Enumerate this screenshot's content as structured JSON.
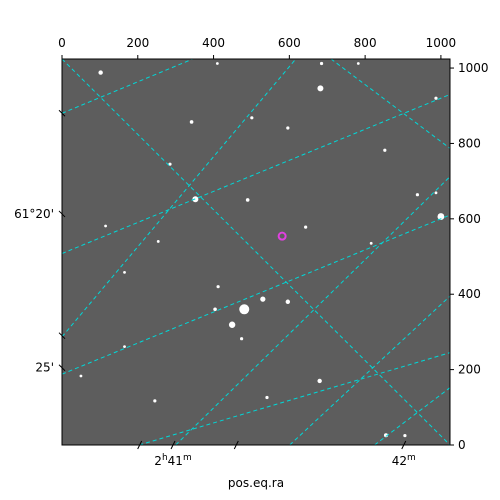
{
  "chart_data": {
    "type": "scatter",
    "title": "",
    "xlabel": "pos.eq.ra",
    "ylabel": "",
    "xlim": [
      0,
      1024
    ],
    "ylim": [
      0,
      1024
    ],
    "grid": true,
    "grid_color": "#00d8d8",
    "image_background": "#5d5d5d",
    "source_marker_color": "#e040e0",
    "pixel_axes": {
      "top_ticks": [
        0,
        200,
        400,
        600,
        800,
        1000
      ],
      "right_ticks": [
        0,
        200,
        400,
        600,
        800,
        1000
      ]
    },
    "world_axes": {
      "bottom_labels": [
        {
          "x": 293,
          "hours": "2",
          "h_unit": "h",
          "minutes": "41",
          "m_unit": "m"
        },
        {
          "x": 902,
          "hours": "",
          "h_unit": "",
          "minutes": "42",
          "m_unit": "m"
        }
      ],
      "left_labels": [
        {
          "y": 613,
          "text": "61°20'"
        },
        {
          "y": 205,
          "text": "25'"
        }
      ]
    },
    "grid_lines": [
      {
        "x1": 0,
        "y1": 1024,
        "x2": 1024,
        "y2": 0
      },
      {
        "x1": 0,
        "y1": 880,
        "x2": 345,
        "y2": 1024
      },
      {
        "x1": 0,
        "y1": 508,
        "x2": 1024,
        "y2": 930
      },
      {
        "x1": 0,
        "y1": 188,
        "x2": 1024,
        "y2": 610
      },
      {
        "x1": 204,
        "y1": 0,
        "x2": 1024,
        "y2": 245
      },
      {
        "x1": 0,
        "y1": 287,
        "x2": 617,
        "y2": 1024
      },
      {
        "x1": 0,
        "y1": 0,
        "x2": 415,
        "y2": 0
      },
      {
        "x1": 300,
        "y1": 0,
        "x2": 1024,
        "y2": 712
      },
      {
        "x1": 601,
        "y1": 0,
        "x2": 1024,
        "y2": 395
      },
      {
        "x1": 825,
        "y1": 0,
        "x2": 1024,
        "y2": 152
      },
      {
        "x1": 710,
        "y1": 1024,
        "x2": 1024,
        "y2": 787
      }
    ],
    "stars": [
      {
        "x": 102,
        "y": 988,
        "r": 2.2
      },
      {
        "x": 685,
        "y": 1012,
        "r": 1.6
      },
      {
        "x": 682,
        "y": 946,
        "r": 3.0
      },
      {
        "x": 987,
        "y": 920,
        "r": 1.6
      },
      {
        "x": 342,
        "y": 857,
        "r": 1.8
      },
      {
        "x": 501,
        "y": 868,
        "r": 1.6
      },
      {
        "x": 596,
        "y": 841,
        "r": 1.6
      },
      {
        "x": 852,
        "y": 782,
        "r": 1.6
      },
      {
        "x": 285,
        "y": 745,
        "r": 1.6
      },
      {
        "x": 938,
        "y": 664,
        "r": 1.6
      },
      {
        "x": 987,
        "y": 669,
        "r": 1.4
      },
      {
        "x": 490,
        "y": 650,
        "r": 1.8
      },
      {
        "x": 352,
        "y": 652,
        "r": 3.0
      },
      {
        "x": 1000,
        "y": 606,
        "r": 3.4
      },
      {
        "x": 115,
        "y": 581,
        "r": 1.4
      },
      {
        "x": 643,
        "y": 578,
        "r": 1.6
      },
      {
        "x": 254,
        "y": 540,
        "r": 1.4
      },
      {
        "x": 816,
        "y": 535,
        "r": 1.4
      },
      {
        "x": 165,
        "y": 458,
        "r": 1.4
      },
      {
        "x": 412,
        "y": 420,
        "r": 1.6
      },
      {
        "x": 530,
        "y": 387,
        "r": 2.6
      },
      {
        "x": 596,
        "y": 380,
        "r": 2.2
      },
      {
        "x": 481,
        "y": 360,
        "r": 5.0
      },
      {
        "x": 404,
        "y": 360,
        "r": 1.8
      },
      {
        "x": 449,
        "y": 319,
        "r": 3.2
      },
      {
        "x": 474,
        "y": 282,
        "r": 1.6
      },
      {
        "x": 165,
        "y": 261,
        "r": 1.4
      },
      {
        "x": 50,
        "y": 183,
        "r": 1.4
      },
      {
        "x": 680,
        "y": 170,
        "r": 2.2
      },
      {
        "x": 541,
        "y": 126,
        "r": 1.6
      },
      {
        "x": 245,
        "y": 117,
        "r": 1.6
      },
      {
        "x": 855,
        "y": 26,
        "r": 2.0
      },
      {
        "x": 905,
        "y": 25,
        "r": 1.6
      },
      {
        "x": 782,
        "y": 1012,
        "r": 1.4
      },
      {
        "x": 410,
        "y": 1012,
        "r": 1.4
      }
    ],
    "marked_source": {
      "x": 581,
      "y": 554
    }
  }
}
